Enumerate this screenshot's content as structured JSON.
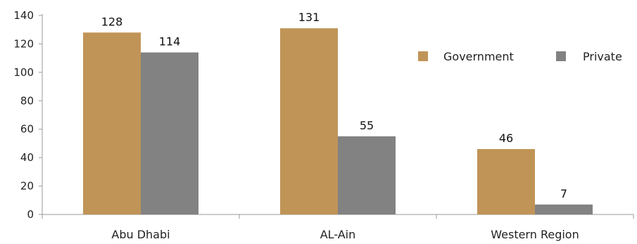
{
  "chart_data": {
    "type": "bar",
    "categories": [
      "Abu Dhabi",
      "AL-Ain",
      "Western Region"
    ],
    "series": [
      {
        "name": "Government",
        "values": [
          128,
          131,
          46
        ],
        "color": "#C09457"
      },
      {
        "name": "Private",
        "values": [
          114,
          55,
          7
        ],
        "color": "#828282"
      }
    ],
    "title": "",
    "xlabel": "",
    "ylabel": "",
    "ylim": [
      0,
      140
    ],
    "yticks": [
      0,
      20,
      40,
      60,
      80,
      100,
      120,
      140
    ],
    "grid": false,
    "legend": "top-right",
    "data_labels": true
  }
}
